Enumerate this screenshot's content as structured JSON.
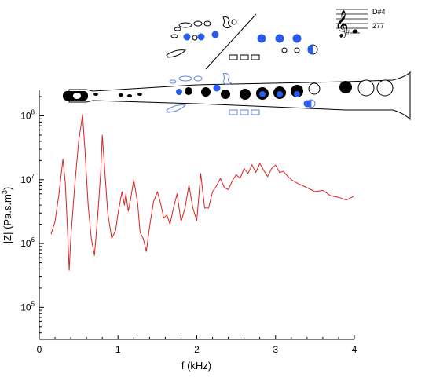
{
  "chart_data": {
    "type": "line",
    "title": "",
    "xlabel": "f (kHz)",
    "ylabel_main": "|Z| (Pa.s.m",
    "ylabel_sup": "3",
    "ylabel_close": ")",
    "xlim": [
      0,
      4
    ],
    "ylim_log10": [
      4.5,
      8.4
    ],
    "y_scale": "log",
    "x_ticks": [
      {
        "value": 0,
        "label": "0"
      },
      {
        "value": 1,
        "label": "1"
      },
      {
        "value": 2,
        "label": "2"
      },
      {
        "value": 3,
        "label": "3"
      },
      {
        "value": 4,
        "label": "4"
      }
    ],
    "y_ticks": [
      {
        "exp": 5,
        "base": "10",
        "sup": "5"
      },
      {
        "exp": 6,
        "base": "10",
        "sup": "6"
      },
      {
        "exp": 7,
        "base": "10",
        "sup": "7"
      },
      {
        "exp": 8,
        "base": "10",
        "sup": "8"
      }
    ],
    "grid": false,
    "series": [
      {
        "color": "#e02020",
        "x": [
          0.15,
          0.2,
          0.25,
          0.3,
          0.33,
          0.36,
          0.38,
          0.4,
          0.45,
          0.5,
          0.55,
          0.58,
          0.62,
          0.66,
          0.7,
          0.74,
          0.78,
          0.8,
          0.83,
          0.87,
          0.92,
          0.97,
          1.0,
          1.05,
          1.08,
          1.1,
          1.13,
          1.16,
          1.2,
          1.25,
          1.28,
          1.32,
          1.36,
          1.4,
          1.45,
          1.5,
          1.55,
          1.58,
          1.62,
          1.66,
          1.7,
          1.75,
          1.8,
          1.85,
          1.9,
          1.95,
          2.0,
          2.05,
          2.1,
          2.15,
          2.2,
          2.25,
          2.3,
          2.35,
          2.4,
          2.45,
          2.5,
          2.55,
          2.6,
          2.65,
          2.7,
          2.75,
          2.8,
          2.85,
          2.9,
          2.95,
          3.0,
          3.05,
          3.1,
          3.15,
          3.2,
          3.3,
          3.4,
          3.5,
          3.6,
          3.7,
          3.8,
          3.9,
          4.0
        ],
        "y": [
          1400000.0,
          2200000.0,
          6000000.0,
          21000000.0,
          9000000.0,
          1500000.0,
          380000.0,
          1200000.0,
          8000000.0,
          40000000.0,
          105000000.0,
          30000000.0,
          4000000.0,
          1200000.0,
          650000.0,
          2500000.0,
          13000000.0,
          50000000.0,
          15000000.0,
          3000000.0,
          1200000.0,
          1600000.0,
          3000000.0,
          6500000.0,
          4000000.0,
          6000000.0,
          3200000.0,
          5000000.0,
          10000000.0,
          4200000.0,
          1500000.0,
          1200000.0,
          750000.0,
          1800000.0,
          4500000.0,
          6500000.0,
          3800000.0,
          2500000.0,
          2800000.0,
          2000000.0,
          3400000.0,
          6000000.0,
          2200000.0,
          3600000.0,
          8200000.0,
          3600000.0,
          2300000.0,
          12500000.0,
          3600000.0,
          3600000.0,
          6500000.0,
          8000000.0,
          10500000.0,
          7500000.0,
          7000000.0,
          9500000.0,
          12000000.0,
          10500000.0,
          15000000.0,
          12500000.0,
          17200000.0,
          13000000.0,
          18000000.0,
          14000000.0,
          11200000.0,
          15000000.0,
          17000000.0,
          13000000.0,
          13500000.0,
          11500000.0,
          10000000.0,
          8500000.0,
          7500000.0,
          6500000.0,
          6800000.0,
          5600000.0,
          5300000.0,
          4800000.0,
          5600000.0
        ]
      }
    ]
  },
  "note": {
    "name": "D#4",
    "fingering_number": "277"
  }
}
